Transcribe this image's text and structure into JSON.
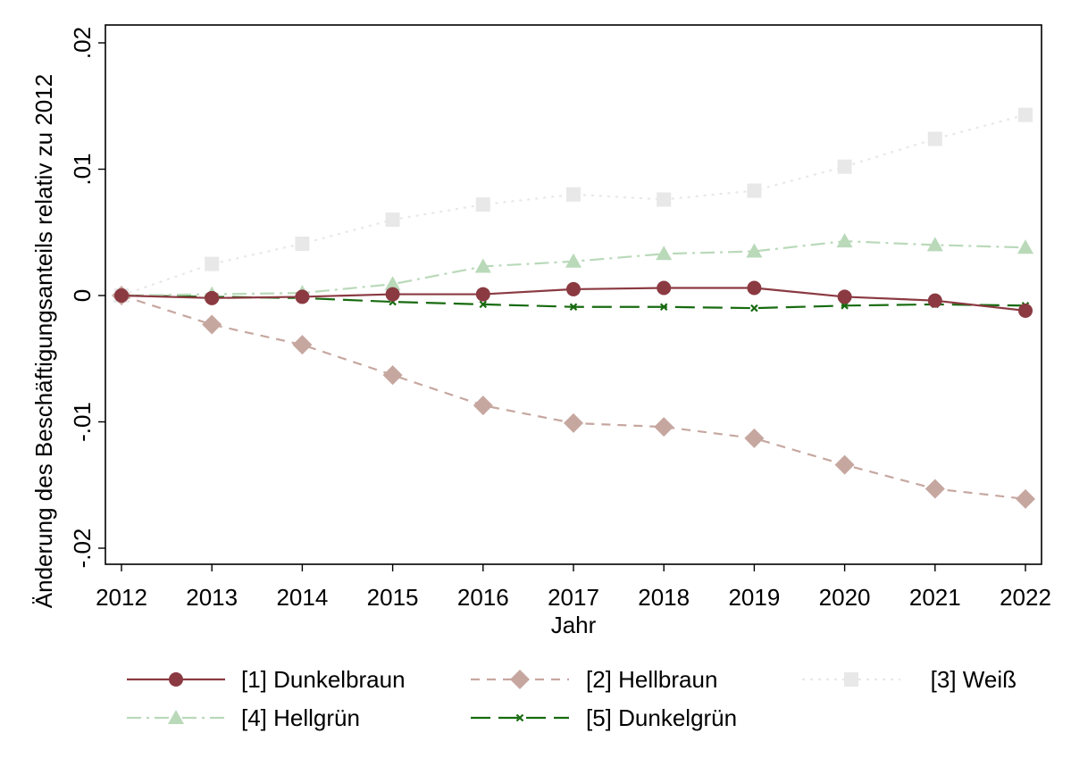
{
  "chart_data": {
    "type": "line",
    "xlabel": "Jahr",
    "ylabel": "Änderung des Beschäftigungsanteils relativ zu 2012",
    "xlim": [
      2012,
      2022
    ],
    "ylim": [
      -0.02,
      0.02
    ],
    "x": [
      2012,
      2013,
      2014,
      2015,
      2016,
      2017,
      2018,
      2019,
      2020,
      2021,
      2022
    ],
    "x_ticks": [
      {
        "value": 2012,
        "label": "2012"
      },
      {
        "value": 2013,
        "label": "2013"
      },
      {
        "value": 2014,
        "label": "2014"
      },
      {
        "value": 2015,
        "label": "2015"
      },
      {
        "value": 2016,
        "label": "2016"
      },
      {
        "value": 2017,
        "label": "2017"
      },
      {
        "value": 2018,
        "label": "2018"
      },
      {
        "value": 2019,
        "label": "2019"
      },
      {
        "value": 2020,
        "label": "2020"
      },
      {
        "value": 2021,
        "label": "2021"
      },
      {
        "value": 2022,
        "label": "2022"
      }
    ],
    "y_ticks": [
      {
        "value": -0.02,
        "label": "-.02"
      },
      {
        "value": -0.01,
        "label": "-.01"
      },
      {
        "value": 0,
        "label": "0"
      },
      {
        "value": 0.01,
        "label": ".01"
      },
      {
        "value": 0.02,
        "label": ".02"
      }
    ],
    "grid": false,
    "legend_position": "bottom",
    "series": [
      {
        "name": "[1] Dunkelbraun",
        "color": "#8b3a42",
        "marker": "circle",
        "dash": "solid",
        "values": [
          0,
          -0.0002,
          -0.0001,
          0.0001,
          0.0001,
          0.0005,
          0.0006,
          0.0006,
          -0.0001,
          -0.0004,
          -0.0012
        ]
      },
      {
        "name": "[2] Hellbraun",
        "color": "#c6a7a0",
        "marker": "diamond",
        "dash": "dashed",
        "values": [
          0,
          -0.0023,
          -0.0039,
          -0.0063,
          -0.0087,
          -0.0101,
          -0.0104,
          -0.0113,
          -0.0134,
          -0.0153,
          -0.0161
        ]
      },
      {
        "name": "[3] Weiß",
        "color": "#e8e8e8",
        "marker": "square",
        "dash": "dotted",
        "values": [
          0,
          0.0025,
          0.0041,
          0.006,
          0.0072,
          0.008,
          0.0076,
          0.0083,
          0.0102,
          0.0124,
          0.0143
        ]
      },
      {
        "name": "[4] Hellgrün",
        "color": "#b9d9b9",
        "marker": "triangle",
        "dash": "dashdot",
        "values": [
          0,
          0.0001,
          0.0002,
          0.0009,
          0.0023,
          0.0027,
          0.0033,
          0.0035,
          0.0043,
          0.004,
          0.0038
        ]
      },
      {
        "name": "[5] Dunkelgrün",
        "color": "#176b10",
        "marker": "x",
        "dash": "longdash",
        "values": [
          0,
          -0.0001,
          -0.0002,
          -0.0005,
          -0.0007,
          -0.0009,
          -0.0009,
          -0.001,
          -0.0008,
          -0.0007,
          -0.0008
        ]
      }
    ]
  }
}
